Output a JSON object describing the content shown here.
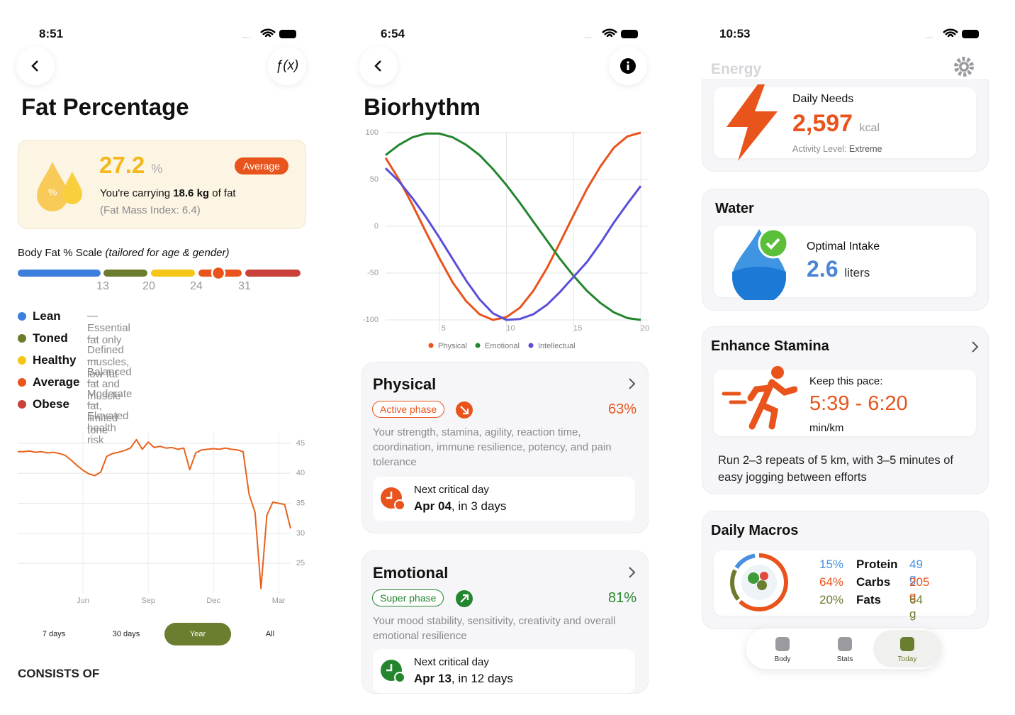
{
  "fat": {
    "status_time": "8:51",
    "fx_button": "ƒ(x)",
    "title": "Fat Percentage",
    "summary": {
      "value": 27.2,
      "unit": "%",
      "badge": "Average",
      "carrying_prefix": "You're carrying",
      "carrying_amount": "18.6 kg",
      "carrying_suffix": "of fat",
      "fat_mass_index": "(Fat Mass Index: 6.4)"
    },
    "scale": {
      "label": "Body Fat % Scale",
      "note": "(tailored for age & gender)",
      "ticks": [
        13,
        20,
        24,
        31
      ],
      "colors": [
        "#3d7fdc",
        "#6b7c2e",
        "#f5c518",
        "#e8541c",
        "#c9413a"
      ]
    },
    "legend": [
      {
        "name": "Lean",
        "description": "— Essential fat only",
        "color": "#3d7fdc"
      },
      {
        "name": "Toned",
        "description": "— Defined muscles, low fat",
        "color": "#6b7c2e"
      },
      {
        "name": "Healthy",
        "description": "— Balanced fat and muscle",
        "color": "#f5c518"
      },
      {
        "name": "Average",
        "description": "— Moderate fat, limited tone",
        "color": "#e8541c"
      },
      {
        "name": "Obese",
        "description": "— Elevated health risk",
        "color": "#c9413a"
      }
    ],
    "chart": {
      "type": "line",
      "color": "#e8621c",
      "categories": [
        null,
        null,
        null,
        null,
        null,
        null,
        null,
        null,
        null,
        null,
        null,
        "Jun",
        null,
        null,
        null,
        null,
        null,
        null,
        null,
        null,
        null,
        null,
        "Sep",
        null,
        null,
        null,
        null,
        null,
        null,
        null,
        null,
        null,
        null,
        "Dec",
        null,
        null,
        null,
        null,
        null,
        null,
        null,
        null,
        null,
        null,
        "Mar",
        null,
        null
      ],
      "values": [
        43.6,
        43.6,
        43.7,
        43.5,
        43.6,
        43.4,
        43.5,
        43.3,
        43.0,
        42.2,
        41.3,
        40.5,
        39.9,
        39.6,
        40.2,
        42.8,
        43.3,
        43.5,
        43.8,
        44.2,
        45.6,
        44.0,
        45.2,
        44.3,
        44.5,
        44.2,
        44.3,
        44.0,
        44.2,
        40.6,
        43.4,
        43.9,
        44.0,
        44.1,
        44.0,
        44.2,
        44.0,
        43.9,
        43.6,
        36.5,
        33.5,
        20.8,
        33.0,
        35.2,
        35.0,
        34.8,
        30.8
      ],
      "ylim": [
        20,
        47
      ],
      "yticks": [
        25,
        30,
        35,
        40,
        45
      ],
      "grid": true
    },
    "periods": [
      {
        "label": "7 days",
        "selected": false
      },
      {
        "label": "30 days",
        "selected": false
      },
      {
        "label": "Year",
        "selected": true
      },
      {
        "label": "All",
        "selected": false
      }
    ],
    "section_heading": "CONSISTS OF"
  },
  "bio": {
    "status_time": "6:54",
    "title": "Biorhythm",
    "chart": {
      "type": "line",
      "x": [
        1,
        2,
        3,
        4,
        5,
        6,
        7,
        8,
        9,
        10,
        11,
        12,
        13,
        14,
        15,
        16,
        17,
        18,
        19,
        20
      ],
      "xlim": [
        1,
        20
      ],
      "xticks": [
        5,
        10,
        15,
        20
      ],
      "ylim": [
        -100,
        100
      ],
      "yticks": [
        100,
        50,
        0,
        -50,
        -100
      ],
      "grid": true,
      "legend": "bottom",
      "series": [
        {
          "name": "Physical",
          "color": "#e8541c",
          "values": [
            73,
            50,
            23,
            -6,
            -34,
            -60,
            -80,
            -94,
            -100,
            -97,
            -87,
            -69,
            -45,
            -17,
            12,
            40,
            64,
            84,
            96,
            100
          ]
        },
        {
          "name": "Emotional",
          "color": "#23862e",
          "values": [
            76,
            87,
            95,
            99,
            99,
            95,
            87,
            76,
            61,
            44,
            25,
            5,
            -15,
            -35,
            -53,
            -69,
            -82,
            -92,
            -98,
            -100
          ]
        },
        {
          "name": "Intellectual",
          "color": "#5a4fd8",
          "values": [
            62,
            48,
            30,
            10,
            -12,
            -35,
            -58,
            -78,
            -93,
            -100,
            -99,
            -94,
            -84,
            -70,
            -54,
            -38,
            -18,
            4,
            24,
            43
          ]
        }
      ]
    },
    "cycles": [
      {
        "name": "Physical",
        "phase": "Active phase",
        "percent": "63%",
        "color": "#e8541c",
        "description": "Your strength, stamina, agility, reaction time, coordination, immune resilience, potency, and pain tolerance",
        "critical_label": "Next critical day",
        "critical_date": "Apr 04",
        "critical_in": ", in 3 days"
      },
      {
        "name": "Emotional",
        "phase": "Super phase",
        "percent": "81%",
        "color": "#23862e",
        "description": "Your mood stability, sensitivity, creativity and overall emotional resilience",
        "critical_label": "Next critical day",
        "critical_date": "Apr 13",
        "critical_in": ", in 12 days"
      }
    ]
  },
  "energy": {
    "status_time": "10:53",
    "header": "Energy",
    "daily_needs": {
      "label": "Daily Needs",
      "value": "2,597",
      "unit": "kcal",
      "activity_label": "Activity Level:",
      "activity_value": "Extreme"
    },
    "water": {
      "title": "Water",
      "label": "Optimal Intake",
      "value": "2.6",
      "unit": "liters"
    },
    "stamina": {
      "title": "Enhance Stamina",
      "label": "Keep this pace:",
      "pace": "5:39 - 6:20",
      "unit": "min/km",
      "description": "Run 2–3 repeats of 5 km, with 3–5 minutes of easy jogging between efforts"
    },
    "macros": {
      "title": "Daily Macros",
      "items": [
        {
          "percent": {
            "value": 15,
            "label": "15%"
          },
          "name": "Protein",
          "amount": "49 g",
          "color": "#4a8fe0"
        },
        {
          "percent": {
            "value": 64,
            "label": "64%"
          },
          "name": "Carbs",
          "amount": "205 g",
          "color": "#e8541c"
        },
        {
          "percent": {
            "value": 20,
            "label": "20%"
          },
          "name": "Fats",
          "amount": "64 g",
          "color": "#6b7c2e"
        }
      ]
    },
    "tabs": [
      {
        "label": "Body",
        "selected": false
      },
      {
        "label": "Stats",
        "selected": false
      },
      {
        "label": "Today",
        "selected": true
      }
    ]
  }
}
